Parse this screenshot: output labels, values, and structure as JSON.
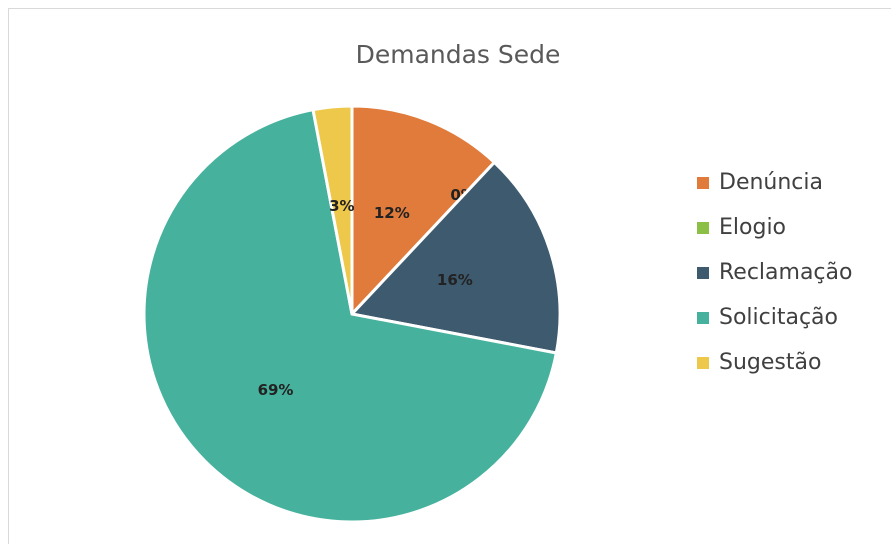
{
  "chart_data": {
    "type": "pie",
    "title": "Demandas Sede",
    "categories": [
      "Denúncia",
      "Elogio",
      "Reclamação",
      "Solicitação",
      "Sugestão"
    ],
    "values": [
      12,
      0,
      16,
      69,
      3
    ],
    "value_labels": [
      "12%",
      "0%",
      "16%",
      "69%",
      "3%"
    ],
    "colors": [
      "#e07b3c",
      "#8cbf45",
      "#3d5a6e",
      "#46b29d",
      "#eec84a"
    ],
    "legend": "right"
  }
}
